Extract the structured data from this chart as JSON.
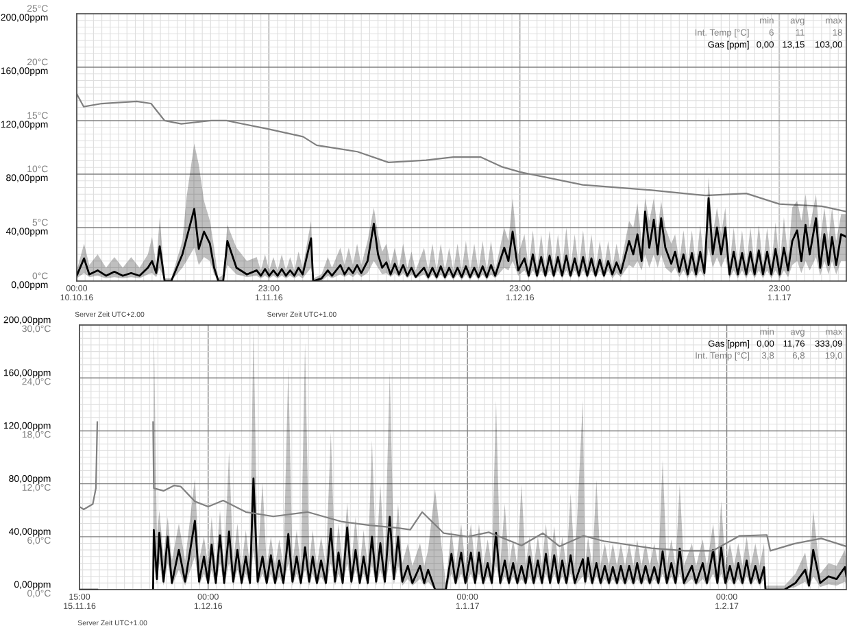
{
  "chart_data": [
    {
      "type": "line",
      "grid": true,
      "legend": "top right",
      "xlim": [
        "2016-10-10T00:00",
        "2017-01-09T23:00"
      ],
      "xticks": [
        {
          "value": "2016-10-10T00:00",
          "label": "00:00\n10.10.16"
        },
        {
          "value": "2016-11-01T23:00",
          "label": "23:00\n1.11.16"
        },
        {
          "value": "2016-12-01T23:00",
          "label": "23:00\n1.12.16"
        },
        {
          "value": "2017-01-01T23:00",
          "label": "23:00\n1.1.17"
        }
      ],
      "ylim": [
        0,
        25
      ],
      "yticks": [
        {
          "value": 0,
          "label": "0°C"
        },
        {
          "value": 5,
          "label": "5°C"
        },
        {
          "value": 10,
          "label": "10°C"
        },
        {
          "value": 15,
          "label": "15°C"
        },
        {
          "value": 20,
          "label": "20°C"
        },
        {
          "value": 25,
          "label": "25°C"
        }
      ],
      "y2lim": [
        0,
        200
      ],
      "y2ticks": [
        {
          "value": 0,
          "label": "0,00ppm"
        },
        {
          "value": 40,
          "label": "40,00ppm"
        },
        {
          "value": 80,
          "label": "80,00ppm"
        },
        {
          "value": 120,
          "label": "120,00ppm"
        },
        {
          "value": 160,
          "label": "160,00ppm"
        },
        {
          "value": 200,
          "label": "200,00ppm"
        }
      ],
      "annotations": [
        "min",
        "avg",
        "max",
        "6",
        "11",
        "18",
        "0,00",
        "13,15",
        "103,00",
        "Server Zeit UTC+2.00",
        "Server Zeit UTC+1.00"
      ],
      "series": [
        {
          "name": "Int. Temp [°C]",
          "color": "#808080",
          "axis": "y",
          "x": [
            "2016-10-10T00:00",
            "2016-10-10T20:00",
            "2016-10-13T00:00",
            "2016-10-17T04:00",
            "2016-10-18T21:00",
            "2016-10-20T12:00",
            "2016-10-22T12:00",
            "2016-10-26T00:00",
            "2016-10-27T22:00",
            "2016-11-01T23:00",
            "2016-11-06T01:00",
            "2016-11-07T16:00",
            "2016-11-12T13:00",
            "2016-11-16T06:00",
            "2016-11-20T18:00",
            "2016-11-24T00:00",
            "2016-11-27T06:00",
            "2016-11-29T18:00",
            "2016-12-01T23:00",
            "2016-12-09T11:00",
            "2016-12-17T16:00",
            "2016-12-24T04:00",
            "2016-12-29T00:00",
            "2017-01-01T23:00",
            "2017-01-07T01:00",
            "2017-01-09T23:00"
          ],
          "values": [
            17.5,
            16.3,
            16.6,
            16.8,
            16.6,
            15.0,
            14.7,
            15.0,
            15.0,
            14.2,
            13.5,
            12.7,
            12.1,
            11.1,
            11.3,
            11.6,
            11.6,
            10.7,
            10.2,
            9.0,
            8.5,
            8.0,
            8.2,
            7.2,
            7.0,
            6.5
          ]
        },
        {
          "name": "Gas [ppm]",
          "color": "#000000",
          "axis": "y2",
          "x": [
            "2016-10-10T00:00",
            "2016-10-10T21:00",
            "2016-10-11T12:00",
            "2016-10-12T12:00",
            "2016-10-13T12:00",
            "2016-10-14T12:00",
            "2016-10-15T12:00",
            "2016-10-16T12:00",
            "2016-10-17T12:00",
            "2016-10-18T12:00",
            "2016-10-19T00:00",
            "2016-10-19T12:00",
            "2016-10-19T22:00",
            "2016-10-20T12:00",
            "2016-10-21T07:00",
            "2016-10-22T15:00",
            "2016-10-23T03:00",
            "2016-10-24T01:00",
            "2016-10-24T14:00",
            "2016-10-25T05:00",
            "2016-10-25T22:00",
            "2016-10-26T10:00",
            "2016-10-26T22:00",
            "2016-10-27T12:00",
            "2016-10-28T00:00",
            "2016-10-29T02:00",
            "2016-10-30T08:00",
            "2016-10-31T12:00",
            "2016-11-01T00:00",
            "2016-11-01T12:00",
            "2016-11-02T00:00",
            "2016-11-02T12:00",
            "2016-11-03T00:00",
            "2016-11-03T12:00",
            "2016-11-04T00:00",
            "2016-11-04T12:00",
            "2016-11-05T00:00",
            "2016-11-05T12:00",
            "2016-11-06T00:00",
            "2016-11-07T00:00",
            "2016-11-07T06:00",
            "2016-11-08T06:00",
            "2016-11-09T00:00",
            "2016-11-09T12:00",
            "2016-11-10T12:00",
            "2016-11-11T00:00",
            "2016-11-11T12:00",
            "2016-11-12T00:00",
            "2016-11-12T12:00",
            "2016-11-13T00:00",
            "2016-11-13T18:00",
            "2016-11-14T12:00",
            "2016-11-15T00:00",
            "2016-11-15T12:00",
            "2016-11-16T00:00",
            "2016-11-16T12:00",
            "2016-11-17T00:00",
            "2016-11-17T12:00",
            "2016-11-18T00:00",
            "2016-11-18T12:00",
            "2016-11-19T00:00",
            "2016-11-19T12:00",
            "2016-11-20T12:00",
            "2016-11-21T00:00",
            "2016-11-21T12:00",
            "2016-11-22T00:00",
            "2016-11-22T12:00",
            "2016-11-23T00:00",
            "2016-11-23T12:00",
            "2016-11-24T00:00",
            "2016-11-24T12:00",
            "2016-11-25T00:00",
            "2016-11-25T12:00",
            "2016-11-26T00:00",
            "2016-11-26T12:00",
            "2016-11-27T00:00",
            "2016-11-27T12:00",
            "2016-11-28T00:00",
            "2016-11-28T12:00",
            "2016-11-29T00:00",
            "2016-11-30T02:00",
            "2016-11-30T14:00",
            "2016-12-01T02:00",
            "2016-12-01T18:00",
            "2016-12-02T12:00",
            "2016-12-03T00:00",
            "2016-12-03T12:00",
            "2016-12-04T00:00",
            "2016-12-04T12:00",
            "2016-12-05T00:00",
            "2016-12-05T12:00",
            "2016-12-06T00:00",
            "2016-12-06T12:00",
            "2016-12-07T00:00",
            "2016-12-07T12:00",
            "2016-12-08T00:00",
            "2016-12-08T12:00",
            "2016-12-09T00:00",
            "2016-12-09T12:00",
            "2016-12-10T00:00",
            "2016-12-10T12:00",
            "2016-12-11T00:00",
            "2016-12-11T12:00",
            "2016-12-12T00:00",
            "2016-12-12T12:00",
            "2016-12-13T00:00",
            "2016-12-13T12:00",
            "2016-12-14T00:00",
            "2016-12-15T00:00",
            "2016-12-15T12:00",
            "2016-12-16T00:00",
            "2016-12-16T12:00",
            "2016-12-16T22:00",
            "2016-12-17T10:00",
            "2016-12-17T23:00",
            "2016-12-18T10:00",
            "2016-12-18T20:00",
            "2016-12-19T08:00",
            "2016-12-20T01:00",
            "2016-12-20T12:00",
            "2016-12-21T00:00",
            "2016-12-21T12:00",
            "2016-12-22T00:00",
            "2016-12-22T12:00",
            "2016-12-23T00:00",
            "2016-12-23T12:00",
            "2016-12-24T00:00",
            "2016-12-24T12:00",
            "2016-12-25T00:00",
            "2016-12-25T12:00",
            "2016-12-26T00:00",
            "2016-12-26T12:00",
            "2016-12-27T00:00",
            "2016-12-27T12:00",
            "2016-12-28T00:00",
            "2016-12-28T12:00",
            "2016-12-29T00:00",
            "2016-12-29T12:00",
            "2016-12-30T00:00",
            "2016-12-30T12:00",
            "2016-12-31T00:00",
            "2016-12-31T12:00",
            "2017-01-01T00:00",
            "2017-01-01T12:00",
            "2017-01-02T00:00",
            "2017-01-02T12:00",
            "2017-01-03T00:00",
            "2017-01-03T12:00",
            "2017-01-04T02:00",
            "2017-01-04T14:00",
            "2017-01-05T02:00",
            "2017-01-05T14:00",
            "2017-01-06T08:00",
            "2017-01-06T20:00",
            "2017-01-07T08:00",
            "2017-01-07T20:00",
            "2017-01-08T06:00",
            "2017-01-08T18:00",
            "2017-01-09T08:00",
            "2017-01-09T23:00"
          ],
          "values": [
            4,
            17,
            5,
            8,
            4,
            7,
            4,
            6,
            4,
            10,
            15,
            6,
            26,
            0,
            0,
            20,
            32,
            54,
            24,
            37,
            28,
            10,
            0,
            0,
            30,
            10,
            5,
            8,
            4,
            9,
            4,
            8,
            4,
            9,
            4,
            8,
            4,
            10,
            5,
            32,
            0,
            2,
            8,
            4,
            12,
            5,
            10,
            6,
            12,
            6,
            15,
            43,
            20,
            10,
            14,
            5,
            13,
            5,
            12,
            4,
            10,
            3,
            10,
            3,
            10,
            3,
            11,
            3,
            10,
            3,
            10,
            3,
            11,
            3,
            10,
            3,
            11,
            3,
            12,
            4,
            25,
            15,
            37,
            8,
            17,
            4,
            20,
            4,
            18,
            4,
            19,
            4,
            18,
            4,
            19,
            4,
            17,
            4,
            18,
            4,
            17,
            4,
            16,
            4,
            15,
            5,
            14,
            6,
            30,
            20,
            35,
            15,
            52,
            25,
            46,
            20,
            47,
            25,
            13,
            22,
            7,
            20,
            5,
            21,
            5,
            22,
            6,
            62,
            20,
            40,
            20,
            40,
            5,
            22,
            5,
            21,
            5,
            22,
            5,
            23,
            5,
            22,
            5,
            24,
            5,
            25,
            8,
            30,
            38,
            15,
            42,
            20,
            47,
            10,
            35,
            12,
            33,
            12,
            35,
            33
          ],
          "lower": [
            2,
            6,
            3,
            4,
            2,
            3,
            2,
            3,
            2,
            5,
            6,
            3,
            10,
            0,
            0,
            10,
            15,
            25,
            12,
            18,
            15,
            5,
            0,
            0,
            12,
            5,
            3,
            4,
            2,
            4,
            2,
            4,
            2,
            4,
            2,
            4,
            2,
            4,
            2,
            10,
            0,
            0,
            4,
            2,
            5,
            3,
            5,
            3,
            6,
            3,
            6,
            15,
            10,
            5,
            6,
            3,
            6,
            3,
            6,
            2,
            5,
            2,
            5,
            1,
            5,
            1,
            5,
            1,
            5,
            1,
            5,
            1,
            5,
            1,
            5,
            1,
            5,
            1,
            5,
            2,
            10,
            8,
            15,
            4,
            8,
            2,
            8,
            2,
            8,
            2,
            8,
            2,
            8,
            2,
            8,
            2,
            8,
            2,
            8,
            2,
            8,
            2,
            8,
            2,
            8,
            2,
            6,
            3,
            12,
            10,
            15,
            8,
            20,
            10,
            20,
            10,
            20,
            10,
            6,
            10,
            3,
            8,
            2,
            8,
            2,
            8,
            3,
            25,
            10,
            18,
            10,
            18,
            2,
            8,
            2,
            8,
            2,
            8,
            2,
            8,
            2,
            8,
            2,
            8,
            2,
            8,
            3,
            12,
            15,
            6,
            15,
            8,
            18,
            4,
            15,
            5,
            15,
            5,
            15,
            15
          ],
          "upper": [
            8,
            28,
            12,
            20,
            10,
            18,
            10,
            18,
            10,
            20,
            33,
            12,
            48,
            2,
            2,
            30,
            63,
            103,
            87,
            60,
            45,
            25,
            2,
            5,
            42,
            25,
            15,
            18,
            8,
            20,
            8,
            18,
            8,
            20,
            8,
            18,
            8,
            22,
            10,
            45,
            2,
            5,
            18,
            10,
            25,
            12,
            25,
            12,
            28,
            12,
            30,
            55,
            35,
            22,
            28,
            12,
            25,
            10,
            28,
            10,
            22,
            8,
            25,
            8,
            28,
            8,
            28,
            8,
            25,
            8,
            28,
            8,
            30,
            8,
            28,
            8,
            30,
            8,
            30,
            8,
            40,
            30,
            62,
            20,
            35,
            10,
            38,
            10,
            35,
            10,
            38,
            10,
            35,
            10,
            40,
            10,
            35,
            10,
            38,
            10,
            35,
            10,
            30,
            10,
            30,
            10,
            28,
            12,
            45,
            40,
            58,
            30,
            62,
            45,
            62,
            38,
            60,
            40,
            28,
            35,
            15,
            38,
            12,
            38,
            12,
            42,
            14,
            78,
            35,
            55,
            35,
            55,
            12,
            40,
            12,
            38,
            12,
            40,
            12,
            42,
            12,
            40,
            12,
            44,
            12,
            48,
            18,
            55,
            60,
            45,
            65,
            40,
            65,
            30,
            55,
            30,
            55,
            30,
            50,
            50
          ]
        }
      ]
    },
    {
      "type": "line",
      "grid": true,
      "legend": "top right",
      "xlim": [
        "2016-11-15T15:00",
        "2017-02-15T07:00"
      ],
      "xticks": [
        {
          "value": "2016-11-15T15:00",
          "label": "15:00\n15.11.16"
        },
        {
          "value": "2016-12-01T00:00",
          "label": "00:00\n1.12.16"
        },
        {
          "value": "2017-01-01T00:00",
          "label": "00:00\n1.1.17"
        },
        {
          "value": "2017-02-01T00:00",
          "label": "00:00\n1.2.17"
        }
      ],
      "ylim": [
        0,
        200
      ],
      "yticks": [
        {
          "value": 0,
          "label": "0,00ppm"
        },
        {
          "value": 40,
          "label": "40,00ppm"
        },
        {
          "value": 80,
          "label": "80,00ppm"
        },
        {
          "value": 120,
          "label": "120,00ppm"
        },
        {
          "value": 160,
          "label": "160,00ppm"
        },
        {
          "value": 200,
          "label": "200,00ppm"
        }
      ],
      "y2lim": [
        0,
        30
      ],
      "y2ticks": [
        {
          "value": 0,
          "label": "0,0°C"
        },
        {
          "value": 6,
          "label": "6,0°C"
        },
        {
          "value": 12,
          "label": "12,0°C"
        },
        {
          "value": 18,
          "label": "18,0°C"
        },
        {
          "value": 24,
          "label": "24,0°C"
        },
        {
          "value": 30,
          "label": "30,0°C"
        }
      ],
      "annotations": [
        "min",
        "avg",
        "max",
        "0,00",
        "11,76",
        "333,09",
        "3,8",
        "6,8",
        "19,0",
        "Server Zeit UTC+1.00"
      ],
      "series": [
        {
          "name": "Gas [ppm]",
          "color": "#000000",
          "axis": "y",
          "x": [
            "2016-11-15T15:00",
            "2016-11-17T18:00",
            "2016-11-20T00:00",
            "2016-11-24T10:00",
            "2016-11-24T12:00",
            "2016-11-24T21:00",
            "2016-11-25T04:00",
            "2016-11-25T16:00",
            "2016-11-26T04:00",
            "2016-11-26T16:00",
            "2016-11-27T12:00",
            "2016-11-28T06:00",
            "2016-11-29T10:00",
            "2016-11-29T22:00",
            "2016-11-30T12:00",
            "2016-12-01T00:00",
            "2016-12-01T10:00",
            "2016-12-01T22:00",
            "2016-12-02T10:00",
            "2016-12-02T22:00",
            "2016-12-03T12:00",
            "2016-12-04T00:00",
            "2016-12-04T12:00",
            "2016-12-05T00:00",
            "2016-12-05T12:00",
            "2016-12-06T00:00",
            "2016-12-06T10:00",
            "2016-12-06T22:00",
            "2016-12-07T12:00",
            "2016-12-08T00:00",
            "2016-12-08T12:00",
            "2016-12-09T00:00",
            "2016-12-09T12:00",
            "2016-12-10T00:00",
            "2016-12-10T14:00",
            "2016-12-11T02:00",
            "2016-12-11T14:00",
            "2016-12-12T02:00",
            "2016-12-12T14:00",
            "2016-12-13T02:00",
            "2016-12-13T12:00",
            "2016-12-14T00:00",
            "2016-12-14T12:00",
            "2016-12-15T02:00",
            "2016-12-15T16:00",
            "2016-12-16T04:00",
            "2016-12-16T14:00",
            "2016-12-17T02:00",
            "2016-12-17T15:00",
            "2016-12-18T03:00",
            "2016-12-18T15:00",
            "2016-12-19T03:00",
            "2016-12-19T14:00",
            "2016-12-20T02:00",
            "2016-12-20T14:00",
            "2016-12-21T02:00",
            "2016-12-21T14:00",
            "2016-12-22T03:00",
            "2016-12-22T17:00",
            "2016-12-23T05:00",
            "2016-12-23T17:00",
            "2016-12-24T05:00",
            "2016-12-24T21:00",
            "2016-12-25T10:00",
            "2016-12-26T08:00",
            "2016-12-26T20:00",
            "2016-12-27T07:00",
            "2016-12-28T03:00",
            "2016-12-29T10:00",
            "2016-12-30T02:00",
            "2016-12-30T14:00",
            "2016-12-31T06:00",
            "2016-12-31T18:00",
            "2017-01-01T10:00",
            "2017-01-01T22:00",
            "2017-01-02T09:00",
            "2017-01-02T21:00",
            "2017-01-03T10:00",
            "2017-01-03T22:00",
            "2017-01-04T10:00",
            "2017-01-04T22:00",
            "2017-01-05T11:00",
            "2017-01-05T23:00",
            "2017-01-06T11:00",
            "2017-01-06T23:00",
            "2017-01-07T11:00",
            "2017-01-07T23:00",
            "2017-01-08T10:00",
            "2017-01-08T22:00",
            "2017-01-09T10:00",
            "2017-01-09T22:00",
            "2017-01-10T09:00",
            "2017-01-10T21:00",
            "2017-01-11T09:00",
            "2017-01-11T21:00",
            "2017-01-12T08:00",
            "2017-01-12T20:00",
            "2017-01-13T08:00",
            "2017-01-13T20:00",
            "2017-01-14T19:00",
            "2017-01-15T02:00",
            "2017-01-15T10:00",
            "2017-01-15T22:00",
            "2017-01-16T10:00",
            "2017-01-16T22:00",
            "2017-01-17T10:00",
            "2017-01-17T22:00",
            "2017-01-18T09:00",
            "2017-01-18T21:00",
            "2017-01-19T08:00",
            "2017-01-19T20:00",
            "2017-01-20T08:00",
            "2017-01-20T20:00",
            "2017-01-21T07:00",
            "2017-01-21T19:00",
            "2017-01-22T07:00",
            "2017-01-22T19:00",
            "2017-01-23T08:00",
            "2017-01-23T20:00",
            "2017-01-24T08:00",
            "2017-01-24T20:00",
            "2017-01-25T09:00",
            "2017-01-25T21:00",
            "2017-01-26T09:00",
            "2017-01-26T21:00",
            "2017-01-27T20:00",
            "2017-01-28T08:00",
            "2017-01-29T03:00",
            "2017-01-29T15:00",
            "2017-01-30T09:00",
            "2017-01-30T21:00",
            "2017-01-31T08:00",
            "2017-01-31T20:00",
            "2017-02-01T09:00",
            "2017-02-01T21:00",
            "2017-02-02T09:00",
            "2017-02-02T21:00",
            "2017-02-03T09:00",
            "2017-02-03T21:00",
            "2017-02-04T10:00",
            "2017-02-04T22:00",
            "2017-02-05T11:00",
            "2017-02-05T15:00",
            "2017-02-07T22:00",
            "2017-02-09T05:00",
            "2017-02-10T09:00",
            "2017-02-10T20:00",
            "2017-02-11T08:00",
            "2017-02-12T04:00",
            "2017-02-13T04:00",
            "2017-02-14T03:00",
            "2017-02-15T03:00",
            "2017-02-15T07:00"
          ],
          "values": [
            0,
            0,
            null,
            0,
            45,
            8,
            43,
            6,
            40,
            5,
            30,
            6,
            52,
            6,
            25,
            5,
            34,
            5,
            41,
            5,
            44,
            6,
            30,
            5,
            25,
            5,
            84,
            6,
            25,
            5,
            26,
            5,
            22,
            5,
            42,
            6,
            25,
            5,
            32,
            6,
            25,
            5,
            22,
            5,
            46,
            6,
            28,
            5,
            47,
            6,
            30,
            5,
            25,
            5,
            40,
            6,
            35,
            6,
            55,
            8,
            40,
            6,
            18,
            5,
            18,
            5,
            15,
            0,
            0,
            27,
            5,
            28,
            5,
            28,
            5,
            28,
            5,
            20,
            5,
            43,
            5,
            22,
            5,
            20,
            5,
            18,
            5,
            25,
            5,
            22,
            5,
            27,
            5,
            26,
            5,
            22,
            5,
            26,
            5,
            23,
            6,
            24,
            5,
            20,
            5,
            18,
            5,
            17,
            5,
            18,
            5,
            18,
            5,
            20,
            5,
            18,
            5,
            17,
            5,
            29,
            5,
            20,
            5,
            31,
            5,
            18,
            5,
            20,
            5,
            30,
            5,
            32,
            5,
            18,
            5,
            20,
            5,
            22,
            5,
            18,
            5,
            17,
            0,
            0,
            5,
            15,
            3,
            30,
            5,
            10,
            8,
            17,
            10
          ],
          "lower": [
            null,
            null,
            null,
            0,
            20,
            4,
            20,
            3,
            20,
            3,
            15,
            3,
            25,
            3,
            12,
            3,
            15,
            3,
            20,
            3,
            20,
            3,
            15,
            3,
            12,
            3,
            30,
            3,
            12,
            3,
            12,
            3,
            10,
            3,
            20,
            3,
            12,
            3,
            15,
            3,
            12,
            3,
            10,
            3,
            20,
            3,
            12,
            3,
            20,
            3,
            15,
            3,
            12,
            3,
            18,
            3,
            15,
            3,
            22,
            4,
            18,
            3,
            8,
            3,
            8,
            3,
            6,
            0,
            0,
            12,
            3,
            12,
            3,
            12,
            3,
            12,
            3,
            10,
            3,
            18,
            3,
            10,
            3,
            10,
            3,
            8,
            3,
            10,
            3,
            10,
            3,
            12,
            3,
            12,
            3,
            10,
            3,
            12,
            3,
            10,
            3,
            10,
            3,
            10,
            3,
            8,
            3,
            8,
            3,
            8,
            3,
            8,
            3,
            8,
            3,
            8,
            3,
            8,
            3,
            12,
            3,
            10,
            3,
            12,
            3,
            8,
            3,
            8,
            3,
            12,
            3,
            12,
            3,
            8,
            3,
            8,
            3,
            10,
            3,
            8,
            3,
            8,
            0,
            0,
            2,
            6,
            1,
            10,
            2,
            4,
            3,
            6,
            4
          ],
          "upper": [
            null,
            null,
            null,
            0,
            200,
            40,
            60,
            25,
            55,
            22,
            50,
            22,
            84,
            22,
            40,
            18,
            55,
            18,
            60,
            18,
            105,
            20,
            50,
            18,
            45,
            18,
            200,
            20,
            81,
            18,
            40,
            18,
            38,
            18,
            169,
            20,
            45,
            18,
            187,
            20,
            45,
            18,
            40,
            18,
            119,
            20,
            50,
            18,
            66,
            20,
            55,
            18,
            45,
            18,
            113,
            20,
            80,
            20,
            165,
            25,
            65,
            20,
            35,
            18,
            35,
            18,
            30,
            76,
            5,
            45,
            18,
            50,
            18,
            50,
            18,
            50,
            18,
            38,
            18,
            143,
            18,
            65,
            18,
            38,
            18,
            80,
            18,
            40,
            18,
            40,
            18,
            50,
            18,
            48,
            18,
            40,
            18,
            73,
            18,
            143,
            20,
            40,
            18,
            83,
            18,
            35,
            18,
            35,
            18,
            35,
            18,
            35,
            18,
            38,
            18,
            35,
            18,
            35,
            18,
            98,
            18,
            38,
            18,
            80,
            18,
            35,
            18,
            38,
            18,
            50,
            18,
            67,
            18,
            35,
            18,
            35,
            18,
            40,
            18,
            35,
            18,
            35,
            3,
            3,
            12,
            28,
            10,
            60,
            12,
            20,
            18,
            30,
            20
          ]
        },
        {
          "name": "Int. Temp [°C]",
          "color": "#808080",
          "axis": "y2",
          "x": [
            "2016-11-15T15:00",
            "2016-11-16T03:00",
            "2016-11-17T05:00",
            "2016-11-17T14:00",
            "2016-11-17T18:00",
            "2016-11-20T00:00",
            "2016-11-24T10:00",
            "2016-11-24T12:00",
            "2016-11-25T16:00",
            "2016-11-26T22:00",
            "2016-11-27T17:00",
            "2016-11-29T10:00",
            "2016-12-01T00:00",
            "2016-12-02T19:00",
            "2016-12-05T12:00",
            "2016-12-08T19:00",
            "2016-12-12T21:00",
            "2016-12-17T00:00",
            "2016-12-20T07:00",
            "2016-12-23T13:00",
            "2016-12-25T04:00",
            "2016-12-26T14:00",
            "2016-12-29T04:00",
            "2017-01-01T00:00",
            "2017-01-03T13:00",
            "2017-01-07T11:00",
            "2017-01-10T00:00",
            "2017-01-12T00:00",
            "2017-01-14T21:00",
            "2017-01-17T07:00",
            "2017-01-23T00:00",
            "2017-01-27T00:00",
            "2017-01-30T07:00",
            "2017-02-02T13:00",
            "2017-02-05T19:00",
            "2017-02-06T05:00",
            "2017-02-09T01:00",
            "2017-02-12T07:00",
            "2017-02-15T07:00"
          ],
          "values": [
            9.4,
            9.1,
            9.7,
            11.5,
            19.0,
            null,
            19.0,
            11.5,
            11.2,
            11.8,
            11.7,
            10.0,
            9.4,
            10.1,
            8.8,
            8.3,
            8.8,
            7.7,
            7.3,
            7.0,
            6.8,
            8.8,
            6.4,
            6.0,
            6.5,
            5.0,
            6.4,
            4.9,
            6.1,
            5.5,
            4.7,
            4.4,
            4.4,
            6.1,
            6.2,
            4.4,
            5.2,
            5.8,
            4.9
          ]
        }
      ]
    }
  ]
}
